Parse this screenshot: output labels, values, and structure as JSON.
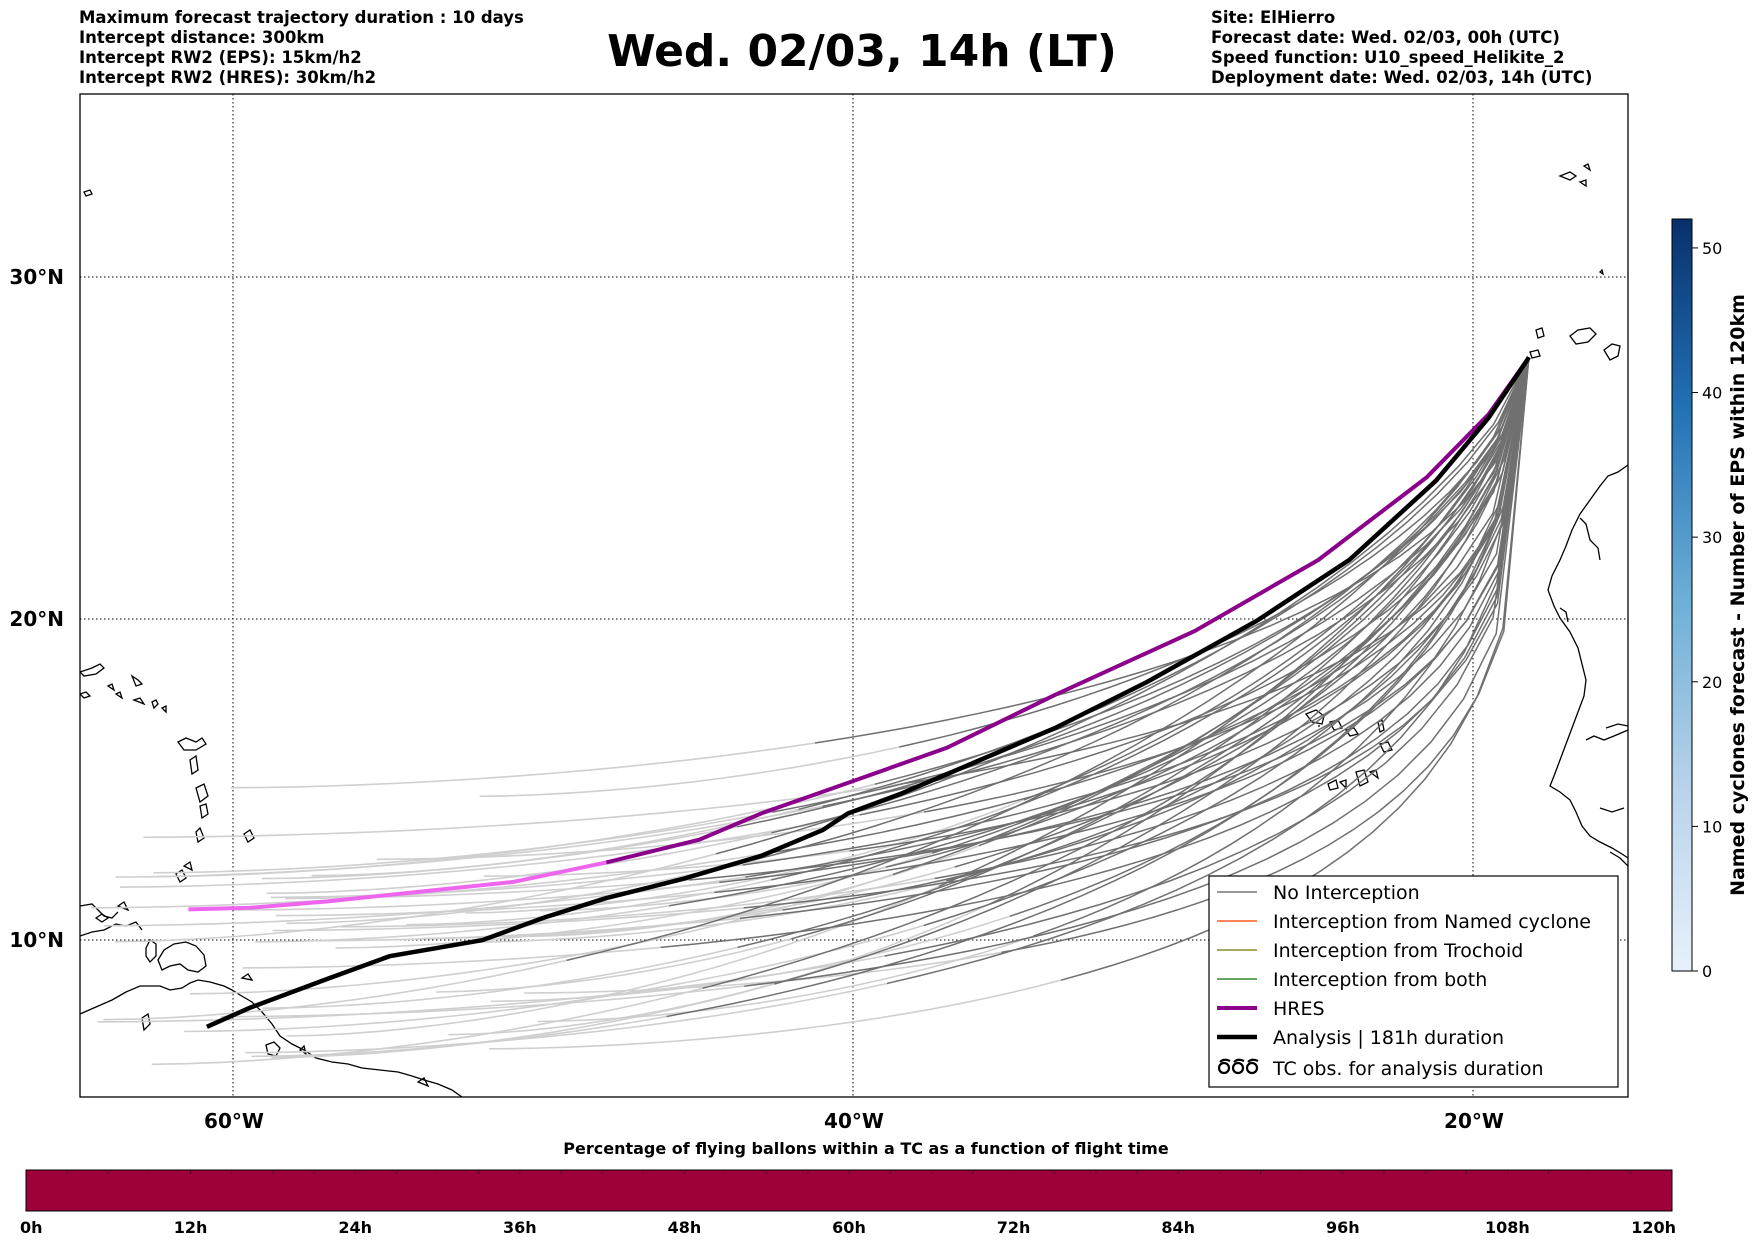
{
  "header_left": [
    "Maximum forecast trajectory duration : 10 days",
    "Intercept distance: 300km",
    "Intercept RW2 (EPS):  15km/h2",
    "Intercept RW2 (HRES): 30km/h2"
  ],
  "header_right": [
    "Site: ElHierro",
    "Forecast date: Wed. 02/03, 00h (UTC)",
    "Speed function: U10_speed_Helikite_2",
    "Deployment date: Wed. 02/03, 14h (UTC)"
  ],
  "title": "Wed. 02/03, 14h (LT)",
  "map": {
    "lat_labels": [
      "30°N",
      "20°N",
      "10°N"
    ],
    "lon_labels": [
      "60°W",
      "40°W",
      "20°W"
    ],
    "lon_range": [
      -65,
      -15
    ],
    "lat_range": [
      5.4,
      34.7
    ],
    "gridlines": "dotted"
  },
  "legend": {
    "items": [
      {
        "label": "No Interception",
        "color": "#777777",
        "kind": "thin"
      },
      {
        "label": "Interception from Named cyclone",
        "color": "#ff5a1e",
        "kind": "thin"
      },
      {
        "label": "Interception from Trochoid",
        "color": "#8b8b2a",
        "kind": "thin"
      },
      {
        "label": "Interception from both",
        "color": "#2e8b2e",
        "kind": "thin"
      },
      {
        "label": "HRES",
        "color": "#8b008b",
        "kind": "thick"
      },
      {
        "label": "Analysis | 181h duration",
        "color": "#000000",
        "kind": "thick"
      },
      {
        "label": "TC obs. for analysis duration",
        "color": "#000000",
        "kind": "symbol"
      }
    ]
  },
  "right_colorbar": {
    "label": "Named cyclones forecast - Number of EPS within 120km",
    "ticks": [
      "0",
      "10",
      "20",
      "30",
      "40",
      "50"
    ],
    "range": [
      0,
      52
    ],
    "color_low": "#e3eef9",
    "color_high": "#08306b"
  },
  "bottom_colorbar": {
    "title": "Percentage of flying ballons within a TC as a function of flight time",
    "ticks": [
      "0h",
      "12h",
      "24h",
      "36h",
      "48h",
      "60h",
      "72h",
      "84h",
      "96h",
      "108h",
      "120h"
    ],
    "fill_color": "#9e003a"
  },
  "trajectories": {
    "origin": [
      -18.2,
      27.6
    ],
    "hres": [
      [
        -18.2,
        27.6
      ],
      [
        -19.5,
        26
      ],
      [
        -21.5,
        24.2
      ],
      [
        -25,
        21.8
      ],
      [
        -29,
        19.7
      ],
      [
        -33.5,
        17.8
      ],
      [
        -37,
        16.2
      ],
      [
        -40,
        15.2
      ],
      [
        -43,
        14.2
      ],
      [
        -45,
        13.4
      ],
      [
        -48,
        12.7
      ],
      [
        -51,
        12.1
      ],
      [
        -54,
        11.8
      ],
      [
        -57,
        11.5
      ],
      [
        -59.5,
        11.3
      ],
      [
        -61.5,
        11.25
      ]
    ],
    "analysis": [
      [
        -18.2,
        27.6
      ],
      [
        -19.5,
        25.9
      ],
      [
        -21.2,
        24.1
      ],
      [
        -24,
        21.8
      ],
      [
        -27,
        20
      ],
      [
        -30.5,
        18.2
      ],
      [
        -33.5,
        16.8
      ],
      [
        -36,
        15.8
      ],
      [
        -38.5,
        14.8
      ],
      [
        -40.2,
        14.2
      ],
      [
        -41,
        13.7
      ],
      [
        -43,
        12.9
      ],
      [
        -45.5,
        12.2
      ],
      [
        -48,
        11.6
      ],
      [
        -50,
        11
      ],
      [
        -52,
        10.3
      ],
      [
        -53.5,
        10.05
      ],
      [
        -55,
        9.8
      ],
      [
        -57,
        9.1
      ],
      [
        -59.5,
        8.2
      ],
      [
        -60.9,
        7.6
      ]
    ]
  }
}
